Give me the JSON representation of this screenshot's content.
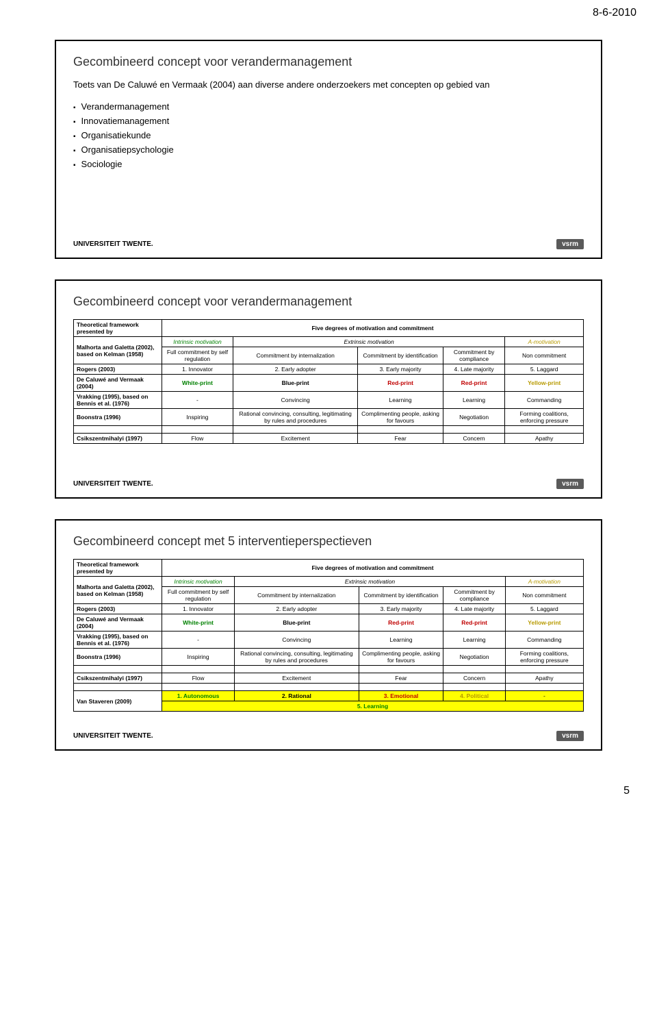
{
  "header_date": "8-6-2010",
  "page_number": "5",
  "footer": {
    "university": "UNIVERSITEIT TWENTE.",
    "logo": "vsrm"
  },
  "slide1": {
    "title": "Gecombineerd concept voor verandermanagement",
    "subtitle": "Toets van De Caluwé en Vermaak (2004) aan diverse andere onderzoekers met concepten op gebied van",
    "bullets": [
      "Verandermanagement",
      "Innovatiemanagement",
      "Organisatiekunde",
      "Organisatiepsychologie",
      "Sociologie"
    ]
  },
  "slide2": {
    "title": "Gecombineerd concept voor verandermanagement"
  },
  "slide3": {
    "title": "Gecombineerd concept met 5 interventieperspectieven"
  },
  "table": {
    "header_presented_by": "Theoretical framework presented by",
    "header_five_degrees": "Five degrees of motivation and commitment",
    "header_intrinsic": "Intrinsic motivation",
    "header_extrinsic": "Extrinsic motivation",
    "header_amotivation": "A-motivation",
    "malhorta": {
      "label": "Malhorta and Galetta (2002), based on Kelman (1958)",
      "c1": "Full commitment by self regulation",
      "c2": "Commitment by internalization",
      "c3": "Commitment by identification",
      "c4": "Commitment by compliance",
      "c5": "Non commitment"
    },
    "rogers": {
      "label": "Rogers (2003)",
      "c1": "1. Innovator",
      "c2": "2. Early adopter",
      "c3": "3. Early majority",
      "c4": "4. Late majority",
      "c5": "5. Laggard"
    },
    "caluwe": {
      "label": "De Caluwé and Vermaak (2004)",
      "c1": "White-print",
      "c2": "Blue-print",
      "c3": "Red-print",
      "c4": "Red-print",
      "c5": "Yellow-print"
    },
    "vrakking": {
      "label": "Vrakking (1995), based on Bennis et al. (1976)",
      "c1": "-",
      "c2": "Convincing",
      "c3": "Learning",
      "c4": "Learning",
      "c5": "Commanding"
    },
    "boonstra": {
      "label": "Boonstra (1996)",
      "c1": "Inspiring",
      "c2": "Rational convincing, consulting, legitimating by rules and procedures",
      "c3": "Complimenting people, asking for favours",
      "c4": "Negotiation",
      "c5": "Forming coalitions, enforcing pressure"
    },
    "csik": {
      "label": "Csikszentmihalyi (1997)",
      "c1": "Flow",
      "c2": "Excitement",
      "c3": "Fear",
      "c4": "Concern",
      "c5": "Apathy"
    },
    "vanstaveren": {
      "label": "Van Staveren (2009)",
      "c1": "1. Autonomous",
      "c2": "2. Rational",
      "c3": "3. Emotional",
      "c4": "4. Political",
      "c5": "-",
      "learning": "5. Learning"
    }
  }
}
